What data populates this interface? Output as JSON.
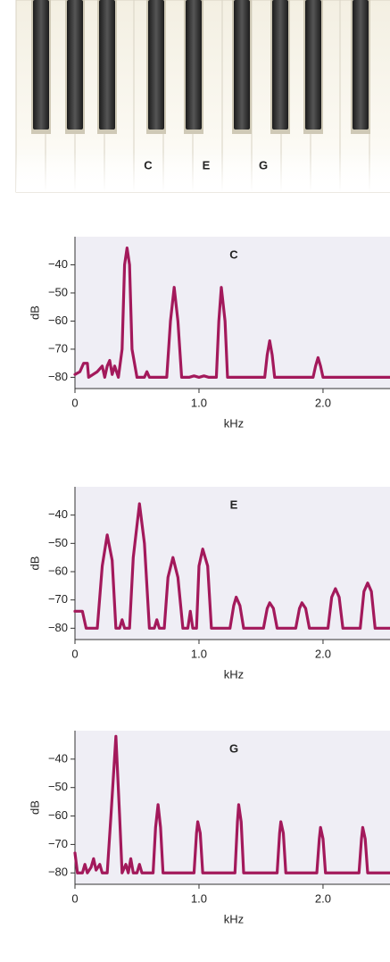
{
  "piano": {
    "key_labels": [
      "C",
      "E",
      "G"
    ]
  },
  "chart_data": [
    {
      "type": "line",
      "title": "C",
      "xlabel": "kHz",
      "ylabel": "dB",
      "color": "#a3195b",
      "xlim": [
        0,
        2.54
      ],
      "ylim": [
        -84,
        -30
      ],
      "xticks": [
        0,
        {
          "value": 1,
          "label": "1.0"
        },
        {
          "value": 2,
          "label": "2.0"
        }
      ],
      "yticks": [
        {
          "value": -40,
          "label": "−40"
        },
        {
          "value": -50,
          "label": "−50"
        },
        {
          "value": -60,
          "label": "−60"
        },
        {
          "value": -70,
          "label": "−70"
        },
        {
          "value": -80,
          "label": "−80"
        }
      ],
      "x": [
        0,
        0.04,
        0.07,
        0.1,
        0.11,
        0.18,
        0.22,
        0.24,
        0.26,
        0.28,
        0.3,
        0.32,
        0.35,
        0.38,
        0.4,
        0.42,
        0.44,
        0.46,
        0.5,
        0.56,
        0.58,
        0.6,
        0.74,
        0.77,
        0.8,
        0.83,
        0.86,
        0.92,
        0.96,
        1.0,
        1.04,
        1.08,
        1.14,
        1.16,
        1.18,
        1.21,
        1.23,
        1.53,
        1.55,
        1.57,
        1.59,
        1.61,
        1.92,
        1.94,
        1.96,
        1.98,
        2.0,
        2.54
      ],
      "values": [
        -79,
        -78,
        -75,
        -75,
        -80,
        -78,
        -76,
        -80,
        -76,
        -74,
        -79,
        -76,
        -80,
        -70,
        -40,
        -34,
        -40,
        -70,
        -80,
        -80,
        -78,
        -80,
        -80,
        -60,
        -48,
        -60,
        -80,
        -80,
        -79.5,
        -80,
        -79.5,
        -80,
        -80,
        -60,
        -48,
        -60,
        -80,
        -80,
        -72,
        -67,
        -72,
        -80,
        -80,
        -76,
        -73,
        -76,
        -80,
        -80
      ]
    },
    {
      "type": "line",
      "title": "E",
      "xlabel": "kHz",
      "ylabel": "dB",
      "color": "#a3195b",
      "xlim": [
        0,
        2.54
      ],
      "ylim": [
        -84,
        -30
      ],
      "xticks": [
        0,
        {
          "value": 1,
          "label": "1.0"
        },
        {
          "value": 2,
          "label": "2.0"
        }
      ],
      "yticks": [
        {
          "value": -40,
          "label": "−40"
        },
        {
          "value": -50,
          "label": "−50"
        },
        {
          "value": -60,
          "label": "−60"
        },
        {
          "value": -70,
          "label": "−70"
        },
        {
          "value": -80,
          "label": "−80"
        }
      ],
      "x": [
        0,
        0.06,
        0.09,
        0.18,
        0.22,
        0.26,
        0.3,
        0.33,
        0.36,
        0.38,
        0.4,
        0.44,
        0.47,
        0.52,
        0.56,
        0.6,
        0.64,
        0.66,
        0.68,
        0.72,
        0.75,
        0.79,
        0.83,
        0.87,
        0.91,
        0.93,
        0.95,
        0.98,
        1.0,
        1.03,
        1.07,
        1.1,
        1.25,
        1.28,
        1.3,
        1.33,
        1.36,
        1.52,
        1.55,
        1.57,
        1.6,
        1.63,
        1.78,
        1.81,
        1.83,
        1.86,
        1.89,
        2.04,
        2.07,
        2.1,
        2.13,
        2.16,
        2.3,
        2.33,
        2.36,
        2.39,
        2.42,
        2.54
      ],
      "values": [
        -74,
        -74,
        -80,
        -80,
        -58,
        -47,
        -56,
        -80,
        -80,
        -77,
        -80,
        -80,
        -55,
        -36,
        -50,
        -80,
        -80,
        -77,
        -80,
        -80,
        -62,
        -55,
        -62,
        -80,
        -80,
        -74,
        -80,
        -80,
        -58,
        -52,
        -58,
        -80,
        -80,
        -72,
        -69,
        -72,
        -80,
        -80,
        -73,
        -71,
        -73,
        -80,
        -80,
        -73,
        -71,
        -73,
        -80,
        -80,
        -69,
        -66,
        -69,
        -80,
        -80,
        -67,
        -64,
        -67,
        -80,
        -80
      ]
    },
    {
      "type": "line",
      "title": "G",
      "xlabel": "kHz",
      "ylabel": "dB",
      "color": "#a3195b",
      "xlim": [
        0,
        2.54
      ],
      "ylim": [
        -84,
        -30
      ],
      "xticks": [
        0,
        {
          "value": 1,
          "label": "1.0"
        },
        {
          "value": 2,
          "label": "2.0"
        }
      ],
      "yticks": [
        {
          "value": -40,
          "label": "−40"
        },
        {
          "value": -50,
          "label": "−50"
        },
        {
          "value": -60,
          "label": "−60"
        },
        {
          "value": -70,
          "label": "−70"
        },
        {
          "value": -80,
          "label": "−80"
        }
      ],
      "x": [
        0,
        0.02,
        0.06,
        0.08,
        0.1,
        0.13,
        0.15,
        0.17,
        0.2,
        0.22,
        0.26,
        0.29,
        0.33,
        0.36,
        0.38,
        0.41,
        0.43,
        0.45,
        0.47,
        0.5,
        0.52,
        0.54,
        0.63,
        0.65,
        0.67,
        0.69,
        0.71,
        0.96,
        0.98,
        0.99,
        1.01,
        1.03,
        1.29,
        1.31,
        1.32,
        1.34,
        1.36,
        1.63,
        1.65,
        1.66,
        1.68,
        1.7,
        1.95,
        1.97,
        1.98,
        2.0,
        2.02,
        2.29,
        2.31,
        2.32,
        2.34,
        2.36,
        2.54
      ],
      "values": [
        -73,
        -80,
        -80,
        -77,
        -80,
        -78,
        -75,
        -79,
        -77,
        -80,
        -80,
        -60,
        -32,
        -60,
        -80,
        -77,
        -80,
        -75,
        -80,
        -80,
        -77,
        -80,
        -80,
        -64,
        -56,
        -64,
        -80,
        -80,
        -66,
        -62,
        -66,
        -80,
        -80,
        -62,
        -56,
        -62,
        -80,
        -80,
        -66,
        -62,
        -66,
        -80,
        -80,
        -68,
        -64,
        -68,
        -80,
        -80,
        -68,
        -64,
        -68,
        -80,
        -80
      ]
    }
  ]
}
